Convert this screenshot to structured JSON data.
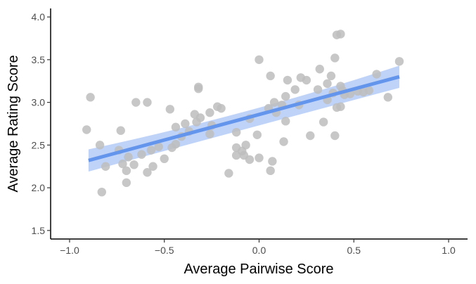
{
  "chart_data": {
    "type": "scatter",
    "title": "",
    "xlabel": "Average Pairwise Score",
    "ylabel": "Average Rating Score",
    "xlim": [
      -1.1,
      1.1
    ],
    "ylim": [
      1.4,
      4.1
    ],
    "xticks": [
      -1.0,
      -0.5,
      0.0,
      0.5,
      1.0
    ],
    "xtick_labels": [
      "−1.0",
      "−0.5",
      "0.0",
      "0.5",
      "1.0"
    ],
    "yticks": [
      1.5,
      2.0,
      2.5,
      3.0,
      3.5,
      4.0
    ],
    "ytick_labels": [
      "1.5",
      "2.0",
      "2.5",
      "3.0",
      "3.5",
      "4.0"
    ],
    "grid": false,
    "legend": "none",
    "point_color": "#bdbdbd",
    "fit_color": "#6495ed",
    "band_color": "#a9c4f5",
    "points": [
      {
        "x": -0.91,
        "y": 2.68
      },
      {
        "x": -0.89,
        "y": 3.06
      },
      {
        "x": -0.84,
        "y": 2.5
      },
      {
        "x": -0.83,
        "y": 1.95
      },
      {
        "x": -0.81,
        "y": 2.25
      },
      {
        "x": -0.74,
        "y": 2.44
      },
      {
        "x": -0.73,
        "y": 2.67
      },
      {
        "x": -0.72,
        "y": 2.28
      },
      {
        "x": -0.7,
        "y": 2.06
      },
      {
        "x": -0.7,
        "y": 2.2
      },
      {
        "x": -0.69,
        "y": 2.36
      },
      {
        "x": -0.66,
        "y": 2.27
      },
      {
        "x": -0.65,
        "y": 3.0
      },
      {
        "x": -0.62,
        "y": 2.39
      },
      {
        "x": -0.59,
        "y": 3.0
      },
      {
        "x": -0.59,
        "y": 2.18
      },
      {
        "x": -0.57,
        "y": 2.44
      },
      {
        "x": -0.56,
        "y": 2.25
      },
      {
        "x": -0.53,
        "y": 2.48
      },
      {
        "x": -0.5,
        "y": 2.34
      },
      {
        "x": -0.47,
        "y": 2.92
      },
      {
        "x": -0.46,
        "y": 2.47
      },
      {
        "x": -0.44,
        "y": 2.51
      },
      {
        "x": -0.44,
        "y": 2.71
      },
      {
        "x": -0.41,
        "y": 2.6
      },
      {
        "x": -0.39,
        "y": 2.75
      },
      {
        "x": -0.37,
        "y": 2.66
      },
      {
        "x": -0.34,
        "y": 2.86
      },
      {
        "x": -0.33,
        "y": 2.77
      },
      {
        "x": -0.32,
        "y": 3.18
      },
      {
        "x": -0.32,
        "y": 3.16
      },
      {
        "x": -0.31,
        "y": 2.82
      },
      {
        "x": -0.26,
        "y": 2.88
      },
      {
        "x": -0.26,
        "y": 2.63
      },
      {
        "x": -0.25,
        "y": 2.73
      },
      {
        "x": -0.22,
        "y": 2.95
      },
      {
        "x": -0.2,
        "y": 2.93
      },
      {
        "x": -0.16,
        "y": 2.17
      },
      {
        "x": -0.12,
        "y": 2.38
      },
      {
        "x": -0.12,
        "y": 2.47
      },
      {
        "x": -0.12,
        "y": 2.65
      },
      {
        "x": -0.09,
        "y": 2.43
      },
      {
        "x": -0.08,
        "y": 2.38
      },
      {
        "x": -0.07,
        "y": 2.5
      },
      {
        "x": -0.05,
        "y": 2.81
      },
      {
        "x": -0.05,
        "y": 2.33
      },
      {
        "x": 0.0,
        "y": 3.5
      },
      {
        "x": -0.01,
        "y": 2.62
      },
      {
        "x": 0.0,
        "y": 2.35
      },
      {
        "x": 0.05,
        "y": 2.93
      },
      {
        "x": 0.06,
        "y": 2.2
      },
      {
        "x": 0.06,
        "y": 3.31
      },
      {
        "x": 0.07,
        "y": 2.31
      },
      {
        "x": 0.08,
        "y": 3.0
      },
      {
        "x": 0.09,
        "y": 2.88
      },
      {
        "x": 0.12,
        "y": 2.97
      },
      {
        "x": 0.13,
        "y": 2.54
      },
      {
        "x": 0.14,
        "y": 2.78
      },
      {
        "x": 0.14,
        "y": 3.07
      },
      {
        "x": 0.15,
        "y": 3.26
      },
      {
        "x": 0.19,
        "y": 3.15
      },
      {
        "x": 0.21,
        "y": 2.97
      },
      {
        "x": 0.22,
        "y": 3.29
      },
      {
        "x": 0.25,
        "y": 3.26
      },
      {
        "x": 0.27,
        "y": 2.61
      },
      {
        "x": 0.31,
        "y": 3.15
      },
      {
        "x": 0.32,
        "y": 3.39
      },
      {
        "x": 0.34,
        "y": 2.77
      },
      {
        "x": 0.36,
        "y": 3.03
      },
      {
        "x": 0.36,
        "y": 3.22
      },
      {
        "x": 0.38,
        "y": 3.31
      },
      {
        "x": 0.39,
        "y": 3.11
      },
      {
        "x": 0.4,
        "y": 2.61
      },
      {
        "x": 0.4,
        "y": 3.52
      },
      {
        "x": 0.41,
        "y": 3.79
      },
      {
        "x": 0.41,
        "y": 2.94
      },
      {
        "x": 0.43,
        "y": 3.8
      },
      {
        "x": 0.43,
        "y": 2.95
      },
      {
        "x": 0.43,
        "y": 3.19
      },
      {
        "x": 0.44,
        "y": 3.14
      },
      {
        "x": 0.45,
        "y": 3.09
      },
      {
        "x": 0.48,
        "y": 3.1
      },
      {
        "x": 0.52,
        "y": 3.13
      },
      {
        "x": 0.55,
        "y": 3.12
      },
      {
        "x": 0.58,
        "y": 3.14
      },
      {
        "x": 0.62,
        "y": 3.33
      },
      {
        "x": 0.68,
        "y": 3.06
      },
      {
        "x": 0.74,
        "y": 3.48
      }
    ],
    "fit": {
      "x": [
        -0.9,
        0.74
      ],
      "y": [
        2.32,
        3.3
      ],
      "ci_lower": [
        2.19,
        3.17
      ],
      "ci_upper": [
        2.45,
        3.43
      ],
      "ci_center": {
        "x": -0.05,
        "lower": 2.72,
        "upper": 2.84
      }
    }
  }
}
